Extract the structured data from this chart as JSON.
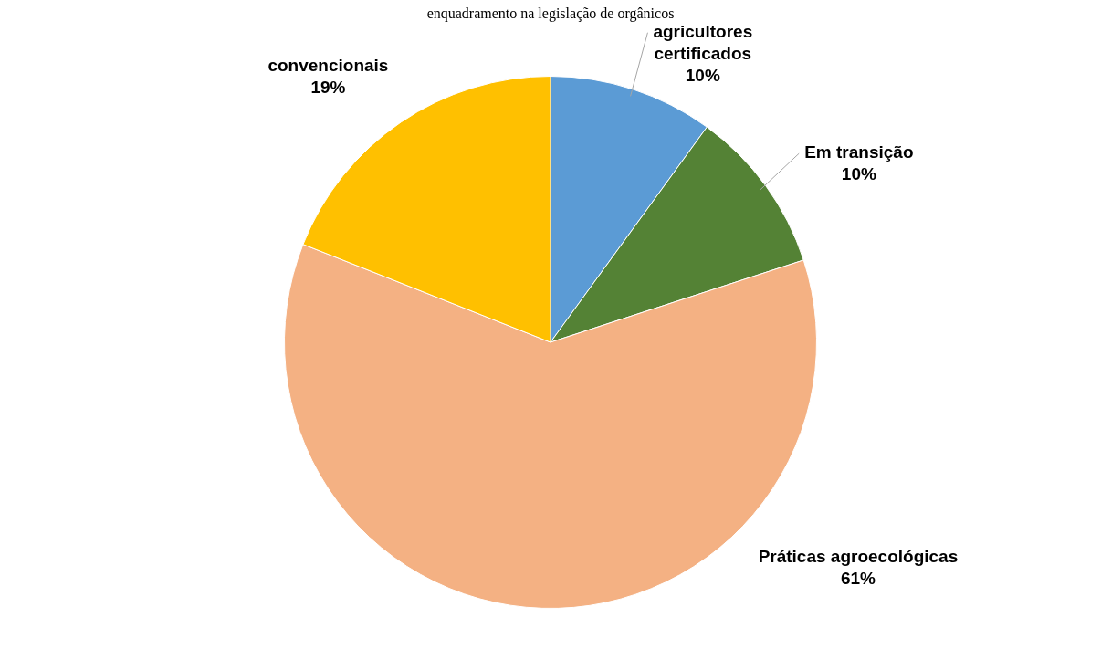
{
  "chart_data": {
    "type": "pie",
    "title": "enquadramento na legislação de orgânicos",
    "categories": [
      "agricultores certificados",
      "Em transição",
      "Práticas agroecológicas",
      "convencionais"
    ],
    "values": [
      10,
      10,
      61,
      19
    ],
    "colors": [
      "#5b9bd5",
      "#548235",
      "#f4b183",
      "#ffc000"
    ],
    "value_labels": [
      "10%",
      "10%",
      "61%",
      "19%"
    ],
    "legend": false
  }
}
